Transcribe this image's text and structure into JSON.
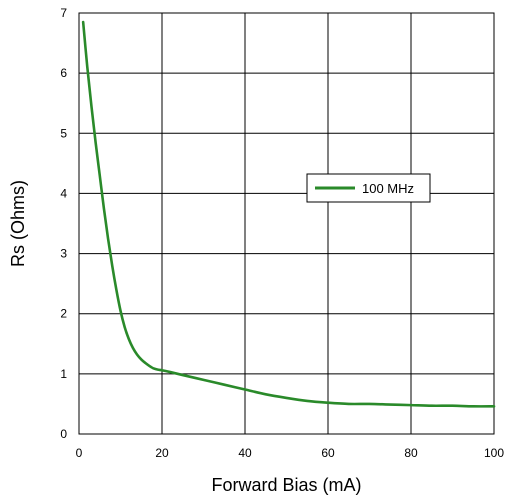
{
  "chart_data": {
    "type": "line",
    "title": "",
    "xlabel": "Forward Bias (mA)",
    "ylabel": "Rs (Ohms)",
    "xlim": [
      0,
      100
    ],
    "ylim": [
      0,
      7
    ],
    "x_ticks": [
      0,
      20,
      40,
      60,
      80,
      100
    ],
    "y_ticks": [
      0,
      1,
      2,
      3,
      4,
      5,
      6,
      7
    ],
    "grid": true,
    "legend_position": "right",
    "series": [
      {
        "name": "100 MHz",
        "color": "#2a8a2a",
        "x": [
          1,
          2,
          3,
          4,
          5,
          6,
          7,
          8,
          9,
          10,
          11,
          12,
          13,
          14,
          15,
          16,
          17,
          18,
          19,
          20,
          22,
          25,
          30,
          35,
          40,
          45,
          50,
          55,
          60,
          65,
          70,
          75,
          80,
          85,
          90,
          95,
          100
        ],
        "y": [
          6.85,
          6.1,
          5.45,
          4.85,
          4.3,
          3.75,
          3.25,
          2.8,
          2.4,
          2.05,
          1.78,
          1.58,
          1.43,
          1.32,
          1.24,
          1.18,
          1.13,
          1.09,
          1.07,
          1.06,
          1.03,
          0.98,
          0.9,
          0.82,
          0.74,
          0.66,
          0.6,
          0.55,
          0.52,
          0.5,
          0.5,
          0.49,
          0.48,
          0.47,
          0.47,
          0.46,
          0.46
        ]
      }
    ]
  }
}
